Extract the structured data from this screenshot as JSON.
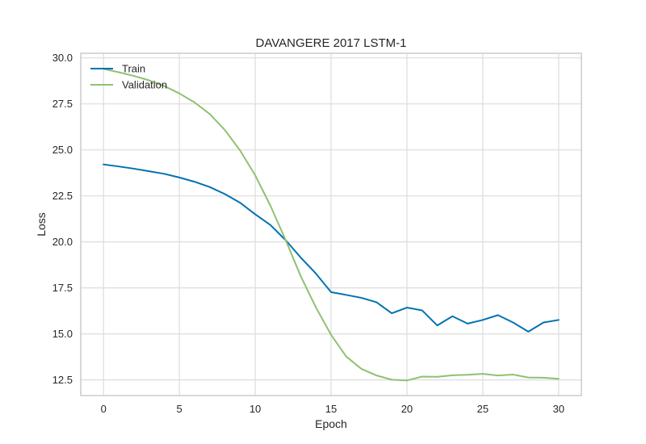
{
  "chart_data": {
    "type": "line",
    "title": "DAVANGERE 2017 LSTM-1",
    "xlabel": "Epoch",
    "ylabel": "Loss",
    "xlim": [
      -1.5,
      31.5
    ],
    "ylim": [
      11.65,
      30.25
    ],
    "x_ticks": [
      0,
      5,
      10,
      15,
      20,
      25,
      30
    ],
    "y_ticks": [
      12.5,
      15.0,
      17.5,
      20.0,
      22.5,
      25.0,
      27.5,
      30.0
    ],
    "x_tick_labels": [
      "0",
      "5",
      "10",
      "15",
      "20",
      "25",
      "30"
    ],
    "y_tick_labels": [
      "12.5",
      "15.0",
      "17.5",
      "20.0",
      "22.5",
      "25.0",
      "27.5",
      "30.0"
    ],
    "grid": true,
    "legend_position": "top-left",
    "x": [
      0,
      1,
      2,
      3,
      4,
      5,
      6,
      7,
      8,
      9,
      10,
      11,
      12,
      13,
      14,
      15,
      16,
      17,
      18,
      19,
      20,
      21,
      22,
      23,
      24,
      25,
      26,
      27,
      28,
      29,
      30
    ],
    "series": [
      {
        "name": "Train",
        "color": "#0072B2",
        "values": [
          24.21,
          24.1,
          23.98,
          23.84,
          23.7,
          23.5,
          23.27,
          22.98,
          22.6,
          22.13,
          21.5,
          20.92,
          20.1,
          19.15,
          18.28,
          17.27,
          17.12,
          16.96,
          16.72,
          16.12,
          16.43,
          16.28,
          15.46,
          15.96,
          15.56,
          15.76,
          16.02,
          15.62,
          15.12,
          15.62,
          15.76
        ]
      },
      {
        "name": "Validation",
        "color": "#8FC172",
        "values": [
          29.4,
          29.22,
          29.02,
          28.78,
          28.47,
          28.07,
          27.58,
          26.95,
          26.08,
          24.97,
          23.62,
          21.97,
          20.11,
          18.14,
          16.44,
          14.95,
          13.77,
          13.1,
          12.74,
          12.51,
          12.47,
          12.68,
          12.67,
          12.75,
          12.78,
          12.83,
          12.74,
          12.79,
          12.63,
          12.62,
          12.56
        ]
      }
    ]
  }
}
